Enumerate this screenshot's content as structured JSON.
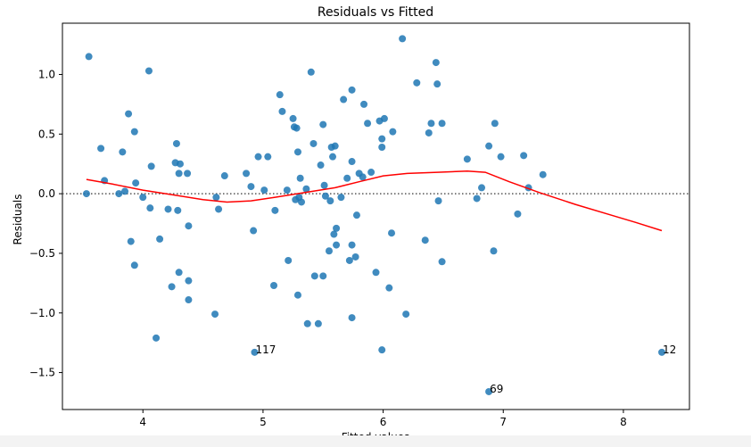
{
  "chart_data": {
    "type": "scatter",
    "title": "Residuals vs Fitted",
    "xlabel": "Fitted values",
    "ylabel": "Residuals",
    "xlim": [
      3.33,
      8.55
    ],
    "ylim": [
      -1.81,
      1.43
    ],
    "xticks": [
      4,
      5,
      6,
      7,
      8
    ],
    "yticks": [
      1.0,
      0.5,
      0.0,
      -0.5,
      -1.0,
      -1.5
    ],
    "ytick_labels": [
      "1.0",
      "0.5",
      "0.0",
      "−0.5",
      "−1.0",
      "−1.5"
    ],
    "grid": false,
    "reference_line": {
      "y": 0,
      "style": "dotted",
      "color": "#555555"
    },
    "point_color": "#1f77b4",
    "lowess_color": "#ff0000",
    "points": [
      [
        3.55,
        1.15
      ],
      [
        3.53,
        0.0
      ],
      [
        3.65,
        0.38
      ],
      [
        3.68,
        0.11
      ],
      [
        3.8,
        0.0
      ],
      [
        3.83,
        0.35
      ],
      [
        3.85,
        0.02
      ],
      [
        3.88,
        0.67
      ],
      [
        3.9,
        -0.4
      ],
      [
        3.93,
        0.52
      ],
      [
        3.93,
        -0.6
      ],
      [
        3.94,
        0.09
      ],
      [
        4.0,
        -0.03
      ],
      [
        4.05,
        1.03
      ],
      [
        4.07,
        0.23
      ],
      [
        4.06,
        -0.12
      ],
      [
        4.11,
        -1.21
      ],
      [
        4.14,
        -0.38
      ],
      [
        4.21,
        -0.13
      ],
      [
        4.24,
        -0.78
      ],
      [
        4.27,
        0.26
      ],
      [
        4.28,
        0.42
      ],
      [
        4.3,
        0.17
      ],
      [
        4.31,
        0.25
      ],
      [
        4.29,
        -0.14
      ],
      [
        4.3,
        -0.66
      ],
      [
        4.37,
        0.17
      ],
      [
        4.38,
        -0.27
      ],
      [
        4.38,
        -0.73
      ],
      [
        4.38,
        -0.89
      ],
      [
        4.6,
        -1.01
      ],
      [
        4.61,
        -0.03
      ],
      [
        4.63,
        -0.13
      ],
      [
        4.68,
        0.15
      ],
      [
        4.86,
        0.17
      ],
      [
        4.9,
        0.06
      ],
      [
        4.92,
        -0.31
      ],
      [
        4.96,
        0.31
      ],
      [
        5.01,
        0.03
      ],
      [
        5.04,
        0.31
      ],
      [
        5.09,
        -0.77
      ],
      [
        5.1,
        -0.14
      ],
      [
        5.14,
        0.83
      ],
      [
        5.16,
        0.69
      ],
      [
        5.2,
        0.03
      ],
      [
        5.21,
        -0.56
      ],
      [
        5.25,
        0.63
      ],
      [
        5.26,
        0.56
      ],
      [
        5.28,
        0.55
      ],
      [
        5.27,
        -0.05
      ],
      [
        5.29,
        0.35
      ],
      [
        5.29,
        -0.85
      ],
      [
        5.3,
        -0.03
      ],
      [
        5.31,
        0.13
      ],
      [
        5.32,
        -0.07
      ],
      [
        5.36,
        0.04
      ],
      [
        5.37,
        -1.09
      ],
      [
        5.4,
        1.02
      ],
      [
        5.42,
        0.42
      ],
      [
        5.43,
        -0.69
      ],
      [
        5.46,
        -1.09
      ],
      [
        5.48,
        0.24
      ],
      [
        5.5,
        0.58
      ],
      [
        5.51,
        0.07
      ],
      [
        5.5,
        -0.69
      ],
      [
        5.52,
        -0.02
      ],
      [
        5.55,
        -0.48
      ],
      [
        5.56,
        -0.06
      ],
      [
        5.57,
        0.39
      ],
      [
        5.58,
        0.31
      ],
      [
        5.6,
        0.4
      ],
      [
        5.59,
        -0.34
      ],
      [
        5.61,
        -0.29
      ],
      [
        5.61,
        -0.43
      ],
      [
        5.65,
        -0.03
      ],
      [
        5.67,
        0.79
      ],
      [
        5.7,
        0.13
      ],
      [
        5.72,
        -0.56
      ],
      [
        5.74,
        0.87
      ],
      [
        5.74,
        0.27
      ],
      [
        5.74,
        -0.43
      ],
      [
        5.74,
        -1.04
      ],
      [
        5.77,
        -0.53
      ],
      [
        5.78,
        -0.18
      ],
      [
        5.8,
        0.17
      ],
      [
        5.83,
        0.14
      ],
      [
        5.84,
        0.75
      ],
      [
        5.87,
        0.59
      ],
      [
        5.9,
        0.18
      ],
      [
        5.94,
        -0.66
      ],
      [
        5.97,
        0.61
      ],
      [
        5.99,
        0.39
      ],
      [
        5.99,
        0.46
      ],
      [
        6.01,
        0.63
      ],
      [
        6.05,
        -0.79
      ],
      [
        6.07,
        -0.33
      ],
      [
        6.08,
        0.52
      ],
      [
        6.16,
        1.3
      ],
      [
        6.19,
        -1.01
      ],
      [
        6.28,
        0.93
      ],
      [
        6.35,
        -0.39
      ],
      [
        6.38,
        0.51
      ],
      [
        6.4,
        0.59
      ],
      [
        6.44,
        1.1
      ],
      [
        6.45,
        0.92
      ],
      [
        6.46,
        -0.06
      ],
      [
        6.49,
        0.59
      ],
      [
        6.49,
        -0.57
      ],
      [
        6.7,
        0.29
      ],
      [
        6.78,
        -0.04
      ],
      [
        6.82,
        0.05
      ],
      [
        6.88,
        0.4
      ],
      [
        6.93,
        0.59
      ],
      [
        6.92,
        -0.48
      ],
      [
        6.98,
        0.31
      ],
      [
        7.12,
        -0.17
      ],
      [
        7.17,
        0.32
      ],
      [
        7.21,
        0.05
      ],
      [
        7.33,
        0.16
      ],
      [
        5.99,
        -1.31
      ],
      [
        4.93,
        -1.33
      ],
      [
        6.88,
        -1.66
      ],
      [
        8.32,
        -1.33
      ]
    ],
    "annotations": [
      {
        "text": "117",
        "x": 4.93,
        "y": -1.33
      },
      {
        "text": "69",
        "x": 6.88,
        "y": -1.66
      },
      {
        "text": "12",
        "x": 8.32,
        "y": -1.33
      }
    ],
    "lowess": [
      [
        3.53,
        0.12
      ],
      [
        3.75,
        0.08
      ],
      [
        4.0,
        0.03
      ],
      [
        4.25,
        -0.01
      ],
      [
        4.5,
        -0.05
      ],
      [
        4.7,
        -0.07
      ],
      [
        4.9,
        -0.06
      ],
      [
        5.1,
        -0.03
      ],
      [
        5.35,
        0.01
      ],
      [
        5.6,
        0.05
      ],
      [
        5.8,
        0.1
      ],
      [
        6.0,
        0.15
      ],
      [
        6.2,
        0.17
      ],
      [
        6.45,
        0.18
      ],
      [
        6.7,
        0.19
      ],
      [
        6.85,
        0.18
      ],
      [
        7.05,
        0.1
      ],
      [
        7.3,
        0.01
      ],
      [
        7.6,
        -0.09
      ],
      [
        7.9,
        -0.18
      ],
      [
        8.1,
        -0.24
      ],
      [
        8.32,
        -0.31
      ]
    ]
  }
}
